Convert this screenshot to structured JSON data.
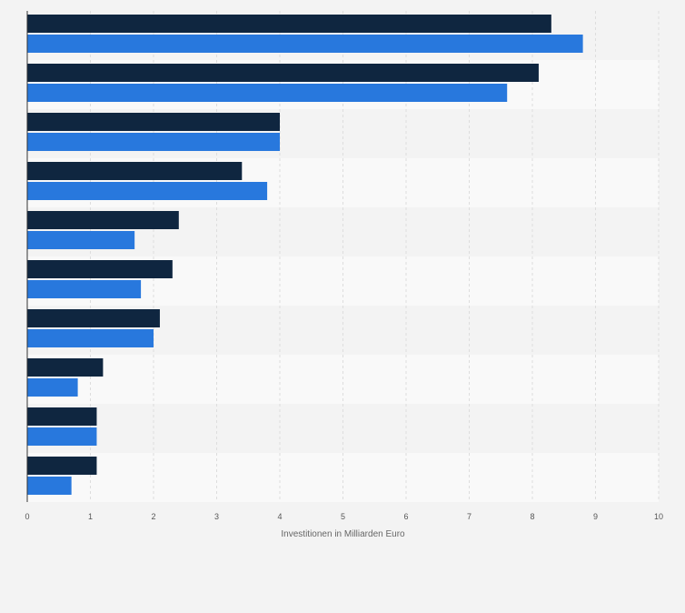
{
  "chart_data": {
    "type": "bar",
    "orientation": "horizontal",
    "categories": [
      "",
      "",
      "",
      "",
      "",
      "",
      "",
      "",
      "",
      ""
    ],
    "series": [
      {
        "values": [
          8.3,
          8.1,
          4.0,
          3.4,
          2.4,
          2.3,
          2.1,
          1.2,
          1.1,
          1.1
        ],
        "color": "#0f2640"
      },
      {
        "values": [
          8.8,
          7.6,
          4.0,
          3.8,
          1.7,
          1.8,
          2.0,
          0.8,
          1.1,
          0.7
        ],
        "color": "#2878dd"
      }
    ],
    "xlim": [
      0,
      10
    ],
    "x_ticks": [
      "0",
      "1",
      "2",
      "3",
      "4",
      "5",
      "6",
      "7",
      "8",
      "9",
      "10"
    ],
    "xlabel": "Investitionen in Milliarden Euro",
    "ylabel": "",
    "grid": true,
    "legend": false
  }
}
